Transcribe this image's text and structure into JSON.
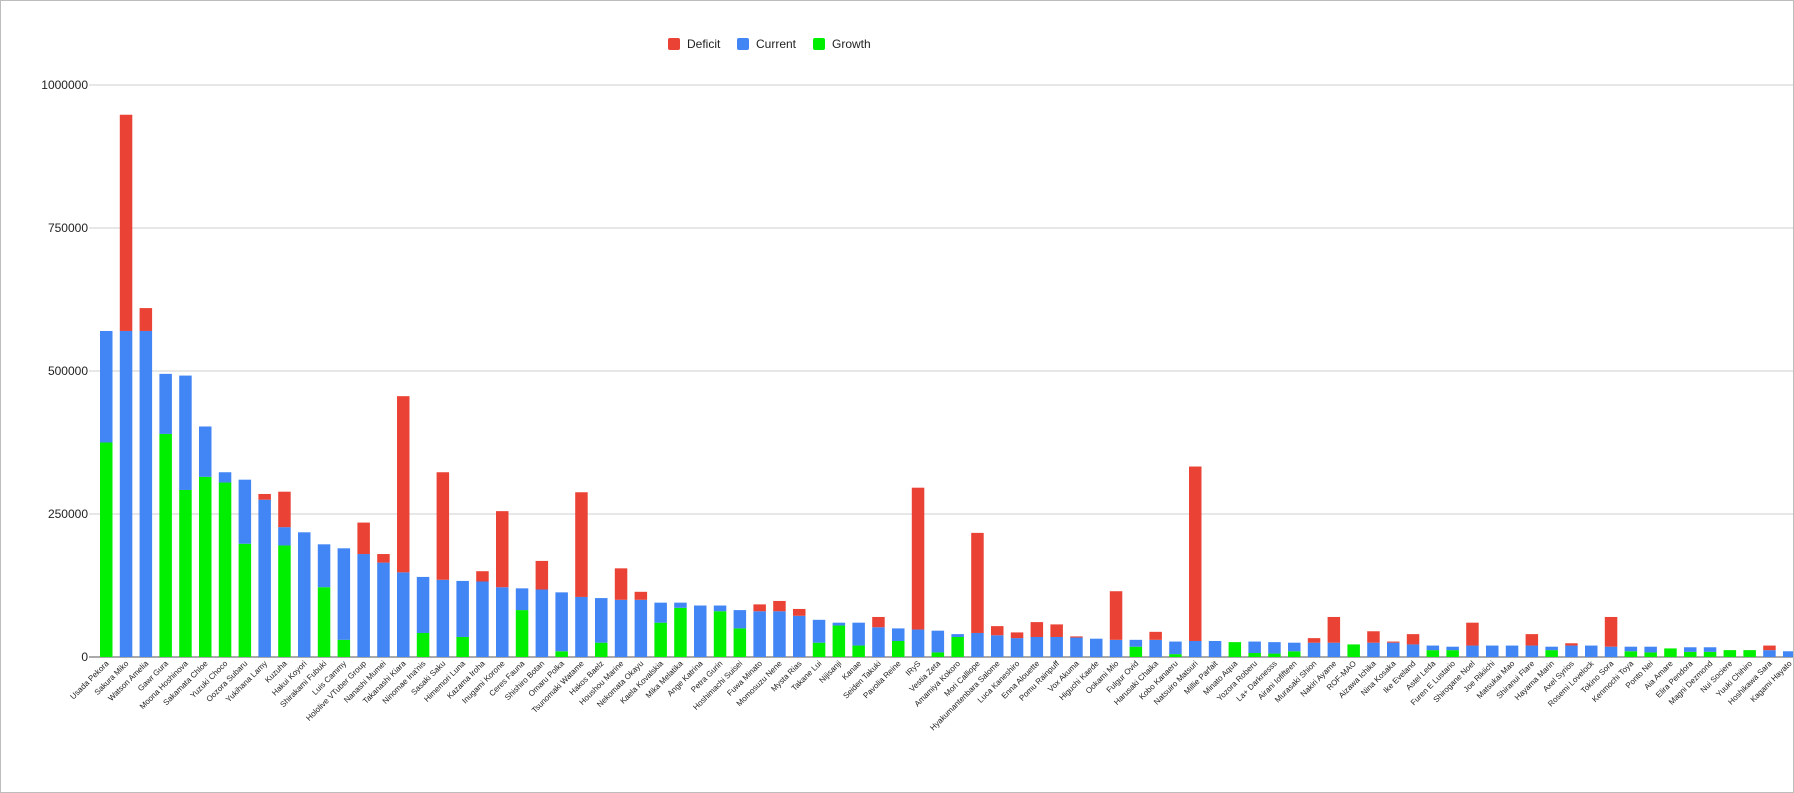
{
  "chart_data": {
    "type": "bar",
    "stacked": true,
    "legend_position": "top-center",
    "grid": true,
    "ylim": [
      0,
      1000000
    ],
    "yticks": [
      0,
      250000,
      500000,
      750000,
      1000000
    ],
    "ytick_labels": [
      "0",
      "250000",
      "500000",
      "750000",
      "1000000"
    ],
    "categories": [
      "Usada Pekora",
      "Sakura Miko",
      "Watson Amelia",
      "Gawr Gura",
      "Moona Hoshinova",
      "Sakamata Chloe",
      "Yuzuki Choco",
      "Oozora Subaru",
      "Yukihana Lamy",
      "Kuzuha",
      "Hakui Koyori",
      "Shirakami Fubuki",
      "Luis Cammy",
      "Hololive VTuber Group",
      "Nanashi Mumei",
      "Takanashi Kiara",
      "Ninomae Ina'nis",
      "Sasaki Saku",
      "Himemori Luna",
      "Kazama Iroha",
      "Inugami Korone",
      "Ceres Fauna",
      "Shishiro Botan",
      "Omaru Polka",
      "Tsunomaki Watame",
      "Hakos Baelz",
      "Houshou Marine",
      "Nekomata Okayu",
      "Kaela Kovalskia",
      "Mika Melatika",
      "Ange Katrina",
      "Petra Gurin",
      "Hoshimachi Suisei",
      "Fuwa Minato",
      "Momosuzu Nene",
      "Mysta Rias",
      "Takane Lui",
      "Nijisanji",
      "Kanae",
      "Seiden Takuki",
      "Pavolia Reine",
      "IRyS",
      "Vestia Zeta",
      "Amamiya Kokoro",
      "Mori Calliope",
      "Hyakumantenbara Salome",
      "Luca Kaneshiro",
      "Enna Alouette",
      "Pomu Rainpuff",
      "Vox Akuma",
      "Higuchi Kaede",
      "Ookami Mio",
      "Fulgur Ovid",
      "Harusaki Chaika",
      "Kobo Kanaeru",
      "Natsuiro Matsuri",
      "Millie Parfait",
      "Minato Aqua",
      "Yozora Roberu",
      "La+ Darknesss",
      "Airani Iofifteen",
      "Murasaki Shion",
      "Nakiri Ayame",
      "ROF-MAO",
      "Aizawa Ichika",
      "Nina Kosaka",
      "Ike Eveland",
      "Astel Leda",
      "Furen E Lustario",
      "Shirogane Noel",
      "Joe Rikiichi",
      "Matsukai Mao",
      "Shiranui Flare",
      "Hayama Marin",
      "Axel Syrios",
      "Rosemi Lovelock",
      "Tokino Sora",
      "Kenmochi Toya",
      "Ponto Nei",
      "Aia Amare",
      "Elira Pendora",
      "Magni Dezmond",
      "Nui Sociere",
      "Yuuki Chihiro",
      "Hoshikawa Sara",
      "Kagami Hayato"
    ],
    "series": [
      {
        "name": "Growth",
        "color": "#00ee00",
        "values": [
          375000,
          0,
          0,
          390000,
          292000,
          315000,
          305000,
          198000,
          0,
          195000,
          0,
          122000,
          30000,
          0,
          0,
          0,
          42000,
          0,
          35000,
          0,
          0,
          82000,
          0,
          10000,
          0,
          25000,
          0,
          0,
          60000,
          86000,
          0,
          80000,
          50000,
          0,
          0,
          0,
          25000,
          55000,
          20000,
          0,
          28000,
          0,
          8000,
          35000,
          0,
          0,
          0,
          0,
          0,
          0,
          0,
          0,
          18000,
          0,
          5000,
          0,
          0,
          26000,
          7000,
          6000,
          10000,
          0,
          0,
          22000,
          0,
          0,
          0,
          12000,
          12000,
          0,
          0,
          0,
          0,
          12000,
          0,
          0,
          0,
          10000,
          8000,
          15000,
          9000,
          9000,
          12000,
          12000,
          0,
          0
        ]
      },
      {
        "name": "Current",
        "color": "#4285f4",
        "values": [
          195000,
          570000,
          570000,
          105000,
          200000,
          88000,
          18000,
          112000,
          275000,
          32000,
          218000,
          75000,
          160000,
          180000,
          165000,
          148000,
          98000,
          135000,
          98000,
          132000,
          122000,
          38000,
          118000,
          103000,
          105000,
          78000,
          100000,
          100000,
          35000,
          9000,
          90000,
          10000,
          32000,
          80000,
          80000,
          72000,
          40000,
          5000,
          40000,
          52000,
          22000,
          48000,
          38000,
          5000,
          42000,
          38000,
          33000,
          35000,
          35000,
          34000,
          32000,
          30000,
          12000,
          30000,
          22000,
          28000,
          28000,
          0,
          20000,
          20000,
          15000,
          25000,
          25000,
          0,
          25000,
          25000,
          22000,
          8000,
          6000,
          20000,
          20000,
          20000,
          20000,
          6000,
          20000,
          20000,
          18000,
          8000,
          10000,
          0,
          8000,
          8000,
          0,
          0,
          12000,
          10000
        ]
      },
      {
        "name": "Deficit",
        "color": "#ea4335",
        "values": [
          0,
          378000,
          40000,
          0,
          0,
          0,
          0,
          0,
          10000,
          62000,
          0,
          0,
          0,
          55000,
          15000,
          308000,
          0,
          188000,
          0,
          18000,
          133000,
          0,
          50000,
          0,
          183000,
          0,
          55000,
          14000,
          0,
          0,
          0,
          0,
          0,
          12000,
          18000,
          12000,
          0,
          0,
          0,
          18000,
          0,
          248000,
          0,
          0,
          175000,
          16000,
          10000,
          26000,
          22000,
          2000,
          0,
          85000,
          0,
          14000,
          0,
          305000,
          0,
          0,
          0,
          0,
          0,
          8000,
          45000,
          0,
          20000,
          2000,
          18000,
          0,
          0,
          40000,
          0,
          0,
          20000,
          0,
          4000,
          0,
          52000,
          0,
          0,
          0,
          0,
          0,
          0,
          0,
          8000,
          0
        ]
      }
    ]
  }
}
